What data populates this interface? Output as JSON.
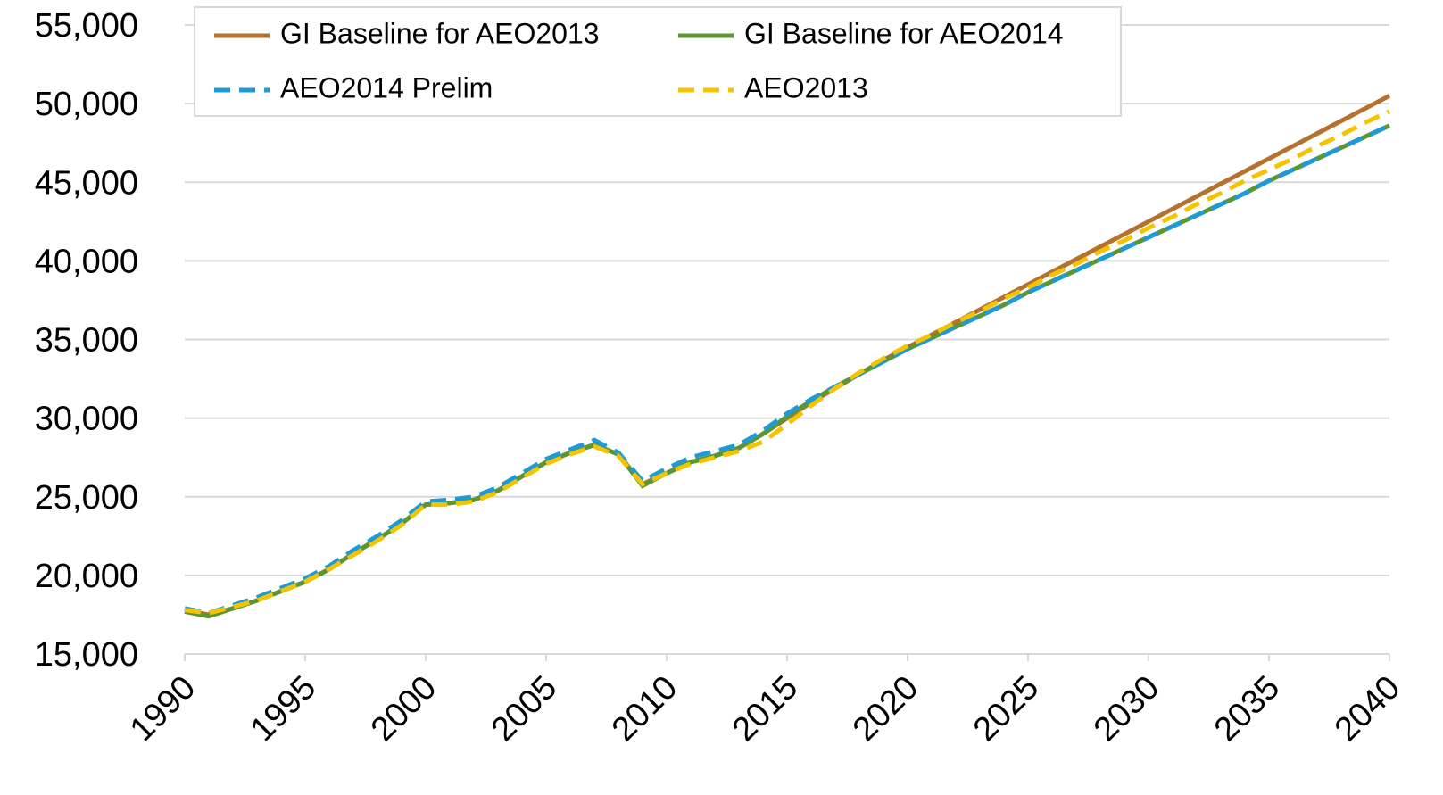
{
  "chart_data": {
    "type": "line",
    "x": [
      1990,
      1991,
      1992,
      1993,
      1994,
      1995,
      1996,
      1997,
      1998,
      1999,
      2000,
      2001,
      2002,
      2003,
      2004,
      2005,
      2006,
      2007,
      2008,
      2009,
      2010,
      2011,
      2012,
      2013,
      2014,
      2015,
      2016,
      2017,
      2018,
      2019,
      2020,
      2021,
      2022,
      2023,
      2024,
      2025,
      2026,
      2027,
      2028,
      2029,
      2030,
      2031,
      2032,
      2033,
      2034,
      2035,
      2036,
      2037,
      2038,
      2039,
      2040
    ],
    "series": [
      {
        "name": "GI Baseline for AEO2013",
        "color": "#b5712e",
        "style": "solid",
        "values": [
          17800,
          17500,
          17900,
          18400,
          19000,
          19600,
          20400,
          21400,
          22300,
          23300,
          24500,
          24600,
          24800,
          25400,
          26300,
          27200,
          27800,
          28300,
          27700,
          25800,
          26500,
          27200,
          27600,
          28100,
          29000,
          30000,
          31000,
          31900,
          32800,
          33700,
          34500,
          35300,
          36100,
          36900,
          37700,
          38500,
          39300,
          40100,
          40900,
          41700,
          42500,
          43300,
          44100,
          44900,
          45700,
          46500,
          47300,
          48100,
          48900,
          49700,
          50500
        ]
      },
      {
        "name": "GI Baseline for AEO2014",
        "color": "#5b9632",
        "style": "solid",
        "values": [
          17700,
          17400,
          17900,
          18400,
          19000,
          19600,
          20400,
          21400,
          22300,
          23300,
          24500,
          24600,
          24800,
          25400,
          26300,
          27200,
          27800,
          28300,
          27700,
          25700,
          26500,
          27200,
          27600,
          28100,
          29000,
          30100,
          31100,
          32000,
          32800,
          33600,
          34400,
          35100,
          35800,
          36500,
          37200,
          38000,
          38700,
          39400,
          40100,
          40800,
          41500,
          42200,
          42900,
          43600,
          44300,
          45100,
          45800,
          46500,
          47200,
          47900,
          48600
        ]
      },
      {
        "name": "AEO2014 Prelim",
        "color": "#1e9bd7",
        "style": "dashed",
        "values": [
          17900,
          17600,
          18100,
          18600,
          19200,
          19800,
          20600,
          21600,
          22500,
          23500,
          24700,
          24800,
          25000,
          25600,
          26500,
          27400,
          28000,
          28600,
          27800,
          26000,
          26800,
          27500,
          27900,
          28300,
          29200,
          30300,
          31200,
          32000,
          32800,
          33600,
          34400,
          35100,
          35800,
          36500,
          37200,
          38000,
          38700,
          39400,
          40100,
          40800,
          41500,
          42200,
          42900,
          43600,
          44300,
          45100,
          45800,
          46500,
          47200,
          47900,
          48600
        ]
      },
      {
        "name": "AEO2013",
        "color": "#f5c400",
        "style": "dashed",
        "values": [
          17800,
          17600,
          18000,
          18400,
          19000,
          19600,
          20400,
          21300,
          22200,
          23200,
          24500,
          24500,
          24700,
          25300,
          26200,
          27100,
          27700,
          28200,
          27600,
          25800,
          26500,
          27100,
          27500,
          27900,
          28500,
          29600,
          30800,
          31900,
          32900,
          33800,
          34600,
          35300,
          36100,
          36800,
          37600,
          38300,
          39100,
          39800,
          40600,
          41300,
          42100,
          42800,
          43600,
          44300,
          45100,
          45800,
          46500,
          47300,
          48000,
          48800,
          49500
        ]
      }
    ],
    "xlim": [
      1990,
      2040
    ],
    "xticks": [
      1990,
      1995,
      2000,
      2005,
      2010,
      2015,
      2020,
      2025,
      2030,
      2035,
      2040
    ],
    "ylim": [
      15000,
      55000
    ],
    "yticks": [
      {
        "value": 15000,
        "label": "15,000"
      },
      {
        "value": 20000,
        "label": "20,000"
      },
      {
        "value": 25000,
        "label": "25,000"
      },
      {
        "value": 30000,
        "label": "30,000"
      },
      {
        "value": 35000,
        "label": "35,000"
      },
      {
        "value": 40000,
        "label": "40,000"
      },
      {
        "value": 45000,
        "label": "45,000"
      },
      {
        "value": 50000,
        "label": "50,000"
      },
      {
        "value": 55000,
        "label": "55,000"
      }
    ],
    "grid": true,
    "legend": "top"
  }
}
